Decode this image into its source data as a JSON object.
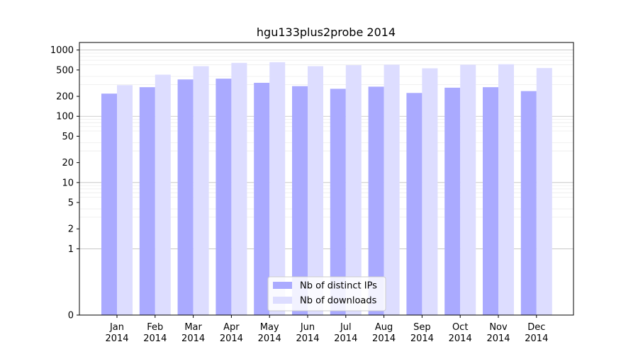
{
  "chart_data": {
    "type": "bar",
    "title": "hgu133plus2probe 2014",
    "xlabel": "",
    "ylabel": "",
    "yscale": "symlog",
    "ylim": [
      0,
      1300
    ],
    "y_ticks": [
      0,
      1,
      2,
      5,
      10,
      20,
      50,
      100,
      200,
      500,
      1000
    ],
    "y_tick_labels": [
      "0",
      "1",
      "2",
      "5",
      "10",
      "20",
      "50",
      "100",
      "200",
      "500",
      "1000"
    ],
    "grid": true,
    "legend_position": "bottom-center",
    "categories": [
      "Jan\n2014",
      "Feb\n2014",
      "Mar\n2014",
      "Apr\n2014",
      "May\n2014",
      "Jun\n2014",
      "Jul\n2014",
      "Aug\n2014",
      "Sep\n2014",
      "Oct\n2014",
      "Nov\n2014",
      "Dec\n2014"
    ],
    "category_lines": [
      [
        "Jan",
        "2014"
      ],
      [
        "Feb",
        "2014"
      ],
      [
        "Mar",
        "2014"
      ],
      [
        "Apr",
        "2014"
      ],
      [
        "May",
        "2014"
      ],
      [
        "Jun",
        "2014"
      ],
      [
        "Jul",
        "2014"
      ],
      [
        "Aug",
        "2014"
      ],
      [
        "Sep",
        "2014"
      ],
      [
        "Oct",
        "2014"
      ],
      [
        "Nov",
        "2014"
      ],
      [
        "Dec",
        "2014"
      ]
    ],
    "series": [
      {
        "name": "Nb of distinct IPs",
        "color": "#aaaaff",
        "values": [
          220,
          275,
          360,
          370,
          320,
          285,
          260,
          280,
          225,
          270,
          275,
          240
        ]
      },
      {
        "name": "Nb of downloads",
        "color": "#ddddff",
        "values": [
          295,
          425,
          570,
          640,
          655,
          570,
          590,
          600,
          530,
          600,
          610,
          535
        ]
      }
    ]
  }
}
